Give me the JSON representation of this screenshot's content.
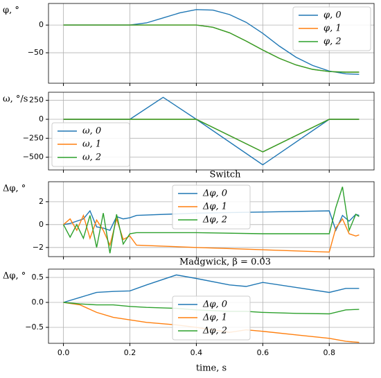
{
  "chart_data": [
    {
      "type": "line",
      "ylabel": "φ, °",
      "legend": "upper right",
      "xlim": [
        -0.045,
        0.935
      ],
      "ylim": [
        -105,
        39
      ],
      "yticks": [
        0,
        {
          "value": -50,
          "label": "−50"
        }
      ],
      "x": [
        0,
        0.2,
        0.25,
        0.3,
        0.35,
        0.4,
        0.45,
        0.5,
        0.55,
        0.6,
        0.65,
        0.7,
        0.75,
        0.8,
        0.85,
        0.89
      ],
      "series": [
        {
          "name": "φ, 0",
          "color": "#1f77b4",
          "values": [
            0,
            0,
            4,
            13,
            22,
            28,
            27,
            19,
            5,
            -15,
            -38,
            -58,
            -73,
            -83,
            -88,
            -89
          ]
        },
        {
          "name": "φ, 1",
          "color": "#ff7f0e",
          "values": [
            0,
            0,
            0,
            0,
            0,
            0,
            -4,
            -14,
            -29,
            -45,
            -60,
            -72,
            -80,
            -84,
            -85,
            -85
          ]
        },
        {
          "name": "φ, 2",
          "color": "#2ca02c",
          "values": [
            0,
            0,
            0,
            0,
            0,
            0,
            -4,
            -14,
            -29,
            -45,
            -60,
            -72,
            -80,
            -84,
            -85,
            -85
          ]
        }
      ]
    },
    {
      "type": "line",
      "ylabel": "ω, °/s",
      "legend": "lower left",
      "xlim": [
        -0.045,
        0.935
      ],
      "ylim": [
        -668,
        357
      ],
      "yticks": [
        250,
        0,
        {
          "value": -250,
          "label": "−250"
        },
        {
          "value": -500,
          "label": "−500"
        }
      ],
      "x": [
        0,
        0.2,
        0.3,
        0.4,
        0.6,
        0.8,
        0.89
      ],
      "series": [
        {
          "name": "ω, 0",
          "color": "#1f77b4",
          "values": [
            0,
            0,
            290,
            0,
            -600,
            0,
            0
          ]
        },
        {
          "name": "ω, 1",
          "color": "#ff7f0e",
          "values": [
            0,
            0,
            0,
            0,
            -430,
            0,
            0
          ]
        },
        {
          "name": "ω, 2",
          "color": "#2ca02c",
          "values": [
            0,
            0,
            0,
            0,
            -430,
            0,
            0
          ]
        }
      ]
    },
    {
      "type": "line",
      "title": "Switch",
      "ylabel": "Δφ, °",
      "legend": "upper center",
      "xlim": [
        -0.045,
        0.935
      ],
      "ylim": [
        -2.8,
        3.75
      ],
      "yticks": [
        2,
        0,
        {
          "value": -2,
          "label": "−2"
        }
      ],
      "x": [
        0,
        0.02,
        0.04,
        0.06,
        0.08,
        0.1,
        0.12,
        0.14,
        0.16,
        0.18,
        0.2,
        0.22,
        0.4,
        0.6,
        0.8,
        0.82,
        0.84,
        0.86,
        0.88,
        0.89
      ],
      "series": [
        {
          "name": "Δφ, 0",
          "color": "#1f77b4",
          "values": [
            0,
            0.1,
            0.3,
            0.5,
            1.2,
            -0.2,
            -0.3,
            -0.5,
            0.7,
            0.5,
            0.6,
            0.8,
            1.0,
            1.1,
            1.2,
            -0.5,
            0.8,
            0.3,
            0.9,
            0.8
          ]
        },
        {
          "name": "Δφ, 1",
          "color": "#ff7f0e",
          "values": [
            0,
            0.5,
            -0.5,
            0.8,
            -1.2,
            0.4,
            -0.5,
            -1.8,
            0.5,
            -1.3,
            -1.0,
            -1.8,
            -2.0,
            -2.2,
            -2.4,
            -0.3,
            0.5,
            -0.8,
            -1.0,
            -0.9
          ]
        },
        {
          "name": "Δφ, 2",
          "color": "#2ca02c",
          "values": [
            0,
            -1.1,
            0,
            -1.2,
            0.8,
            -2.0,
            1.0,
            -2.5,
            0.9,
            -1.7,
            -0.8,
            -0.7,
            -0.7,
            -0.8,
            -0.8,
            1.5,
            3.3,
            -0.5,
            0.9,
            0.7
          ]
        }
      ]
    },
    {
      "type": "line",
      "title": "Madgwick, β = 0.03",
      "ylabel": "Δφ, °",
      "xlabel": "time, s",
      "legend": "lower center",
      "xlim": [
        -0.045,
        0.935
      ],
      "ylim": [
        -0.82,
        0.667
      ],
      "xticks": [
        {
          "value": 0,
          "label": "0.0"
        },
        {
          "value": 0.2,
          "label": "0.2"
        },
        {
          "value": 0.4,
          "label": "0.4"
        },
        {
          "value": 0.6,
          "label": "0.6"
        },
        {
          "value": 0.8,
          "label": "0.8"
        }
      ],
      "yticks": [
        0.5,
        {
          "value": 0,
          "label": "0.0"
        },
        {
          "value": -0.5,
          "label": "−0.5"
        }
      ],
      "x": [
        0,
        0.05,
        0.1,
        0.15,
        0.2,
        0.25,
        0.34,
        0.4,
        0.5,
        0.55,
        0.6,
        0.7,
        0.8,
        0.85,
        0.89
      ],
      "series": [
        {
          "name": "Δφ, 0",
          "color": "#1f77b4",
          "values": [
            0,
            0.1,
            0.2,
            0.22,
            0.23,
            0.35,
            0.55,
            0.48,
            0.35,
            0.32,
            0.4,
            0.3,
            0.2,
            0.28,
            0.28
          ]
        },
        {
          "name": "Δφ, 1",
          "color": "#ff7f0e",
          "values": [
            0,
            -0.05,
            -0.2,
            -0.3,
            -0.35,
            -0.4,
            -0.45,
            -0.5,
            -0.6,
            -0.55,
            -0.58,
            -0.65,
            -0.72,
            -0.78,
            -0.8
          ]
        },
        {
          "name": "Δφ, 2",
          "color": "#2ca02c",
          "values": [
            0,
            -0.03,
            -0.05,
            -0.05,
            -0.08,
            -0.1,
            -0.12,
            -0.15,
            -0.18,
            -0.18,
            -0.2,
            -0.22,
            -0.23,
            -0.15,
            -0.14
          ]
        }
      ]
    }
  ]
}
